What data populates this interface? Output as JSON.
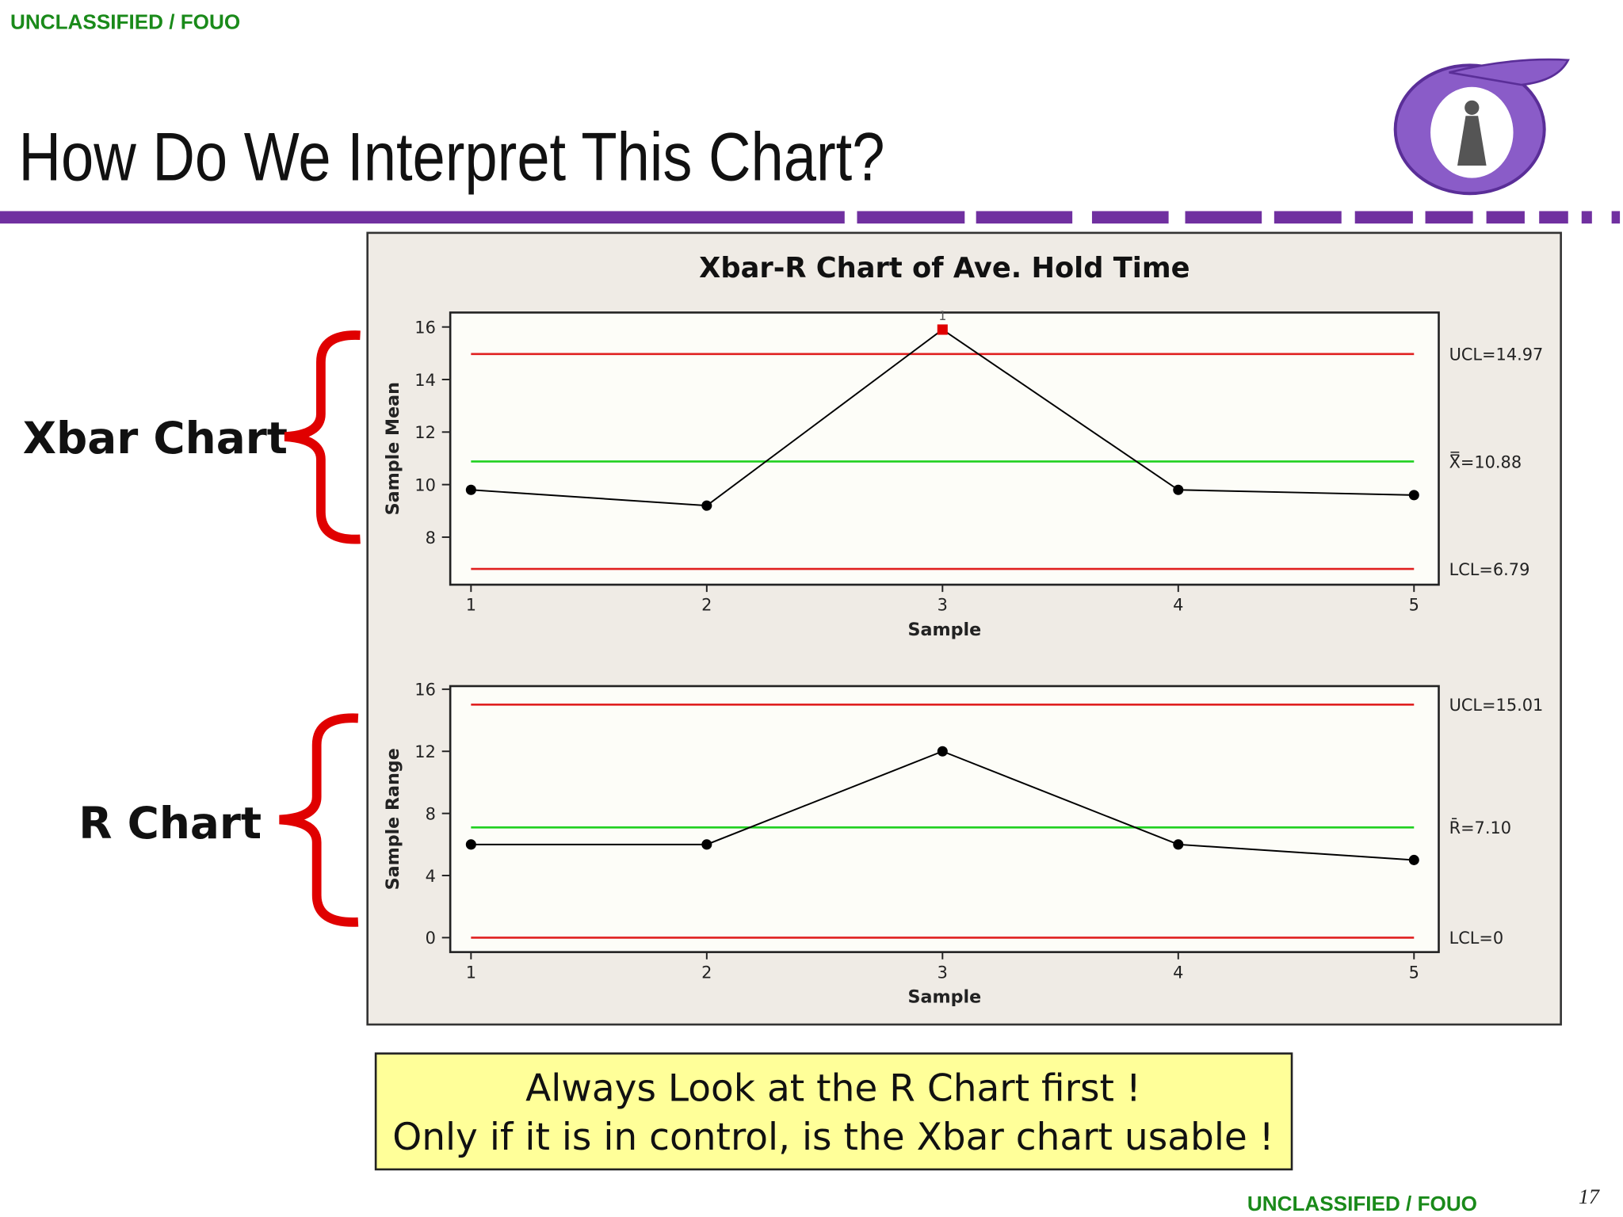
{
  "header": {
    "classification": "UNCLASSIFIED / FOUO",
    "title": "How Do We Interpret This Chart?"
  },
  "callouts": {
    "xbar": "Xbar Chart",
    "r": "R Chart"
  },
  "note": [
    "Always Look at the R Chart first !",
    "Only if it is in control, is the Xbar chart usable !"
  ],
  "footer": {
    "classification": "UNCLASSIFIED / FOUO",
    "page": "17"
  },
  "chart_data": [
    {
      "type": "line",
      "title": "Xbar-R Chart of Ave. Hold Time",
      "x": [
        1,
        2,
        3,
        4,
        5
      ],
      "xlabel": "Sample",
      "ylabel": "Sample Mean",
      "values": [
        9.8,
        9.2,
        15.9,
        9.8,
        9.6
      ],
      "color": "#000000",
      "point_colors": [
        "#000000",
        "#000000",
        "#e00000",
        "#000000",
        "#000000"
      ],
      "point_labels": [
        null,
        null,
        "1",
        null,
        null
      ],
      "xlim": [
        0.912,
        5.105
      ],
      "xticks": [
        1,
        2,
        3,
        4,
        5
      ],
      "ylim": [
        6.19,
        16.55
      ],
      "yticks": [
        8,
        10,
        12,
        14,
        16
      ],
      "control_lines": [
        {
          "label": "UCL=14.97",
          "value": 14.97,
          "color": "#e02020"
        },
        {
          "label": "X̿=10.88",
          "value": 10.88,
          "color": "#20d020"
        },
        {
          "label": "LCL=6.79",
          "value": 6.79,
          "color": "#e02020"
        }
      ]
    },
    {
      "type": "line",
      "x": [
        1,
        2,
        3,
        4,
        5
      ],
      "xlabel": "Sample",
      "ylabel": "Sample Range",
      "values": [
        6,
        6,
        12,
        6,
        5
      ],
      "color": "#000000",
      "xlim": [
        0.912,
        5.105
      ],
      "xticks": [
        1,
        2,
        3,
        4,
        5
      ],
      "ylim": [
        -0.93,
        16.2
      ],
      "yticks": [
        0,
        4,
        8,
        12,
        16
      ],
      "control_lines": [
        {
          "label": "UCL=15.01",
          "value": 15.01,
          "color": "#e02020"
        },
        {
          "label": "R̄=7.10",
          "value": 7.1,
          "color": "#20d020"
        },
        {
          "label": "LCL=0",
          "value": 0,
          "color": "#e02020"
        }
      ]
    }
  ]
}
